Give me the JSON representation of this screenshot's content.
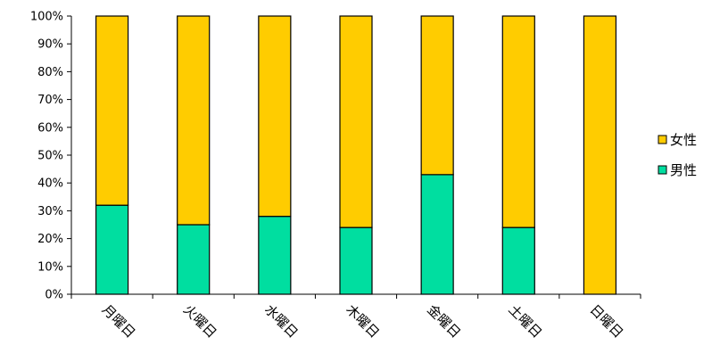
{
  "chart_data": {
    "type": "bar",
    "stacked": true,
    "percent_stacked": true,
    "categories": [
      "月曜日",
      "火曜日",
      "水曜日",
      "木曜日",
      "金曜日",
      "土曜日",
      "日曜日"
    ],
    "series": [
      {
        "name": "男性",
        "values": [
          32,
          25,
          28,
          24,
          43,
          24,
          0
        ],
        "color": "#00dea0"
      },
      {
        "name": "女性",
        "values": [
          68,
          75,
          72,
          76,
          57,
          76,
          100
        ],
        "color": "#ffcc00"
      }
    ],
    "y_ticks": [
      "0%",
      "10%",
      "20%",
      "30%",
      "40%",
      "50%",
      "60%",
      "70%",
      "80%",
      "90%",
      "100%"
    ],
    "ylim": [
      0,
      100
    ],
    "legend_order": [
      "女性",
      "男性"
    ],
    "legend_position": "right",
    "grid": false
  }
}
